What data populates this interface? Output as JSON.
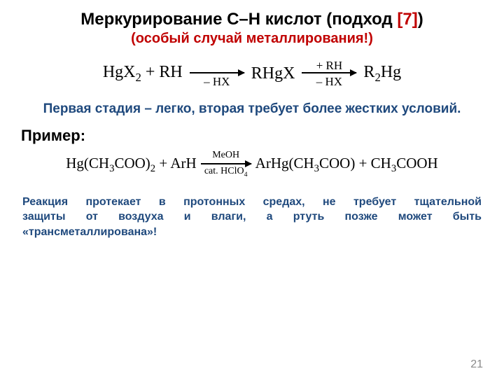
{
  "title_part1": "Меркурирование С–Н кислот (подход ",
  "title_red": "[7]",
  "title_part2": ")",
  "subtitle": "(особый случай металлирования!)",
  "scheme1": {
    "r1": "HgX",
    "r1sub": "2",
    "plus": " + RH",
    "a1_above": "",
    "a1_below": "– HX",
    "mid": "RHgX",
    "a2_above": "+ RH",
    "a2_below": "– HX",
    "prod": "R",
    "prodsub": "2",
    "prod2": "Hg"
  },
  "blue_note": "Первая стадия – легко, вторая требует более жестких условий.",
  "example_label": "Пример:",
  "scheme2": {
    "left": "Hg(CH",
    "left_s1": "3",
    "left2": "COO)",
    "left_s2": "2",
    "plus": " + ArH",
    "a_above": "MeOH",
    "a_below": "cat. HClO",
    "a_below_sub": "4",
    "right": "ArHg(CH",
    "right_s1": "3",
    "right2": "COO) + CH",
    "right_s2": "3",
    "right3": "COOH"
  },
  "reaction_note_l1": "Реакция протекает в протонных средах, не требует тщательной",
  "reaction_note_l2": "защиты от воздуха и влаги, а ртуть позже может быть",
  "reaction_note_l3": "«трансметаллирована»!",
  "page_number": "21"
}
